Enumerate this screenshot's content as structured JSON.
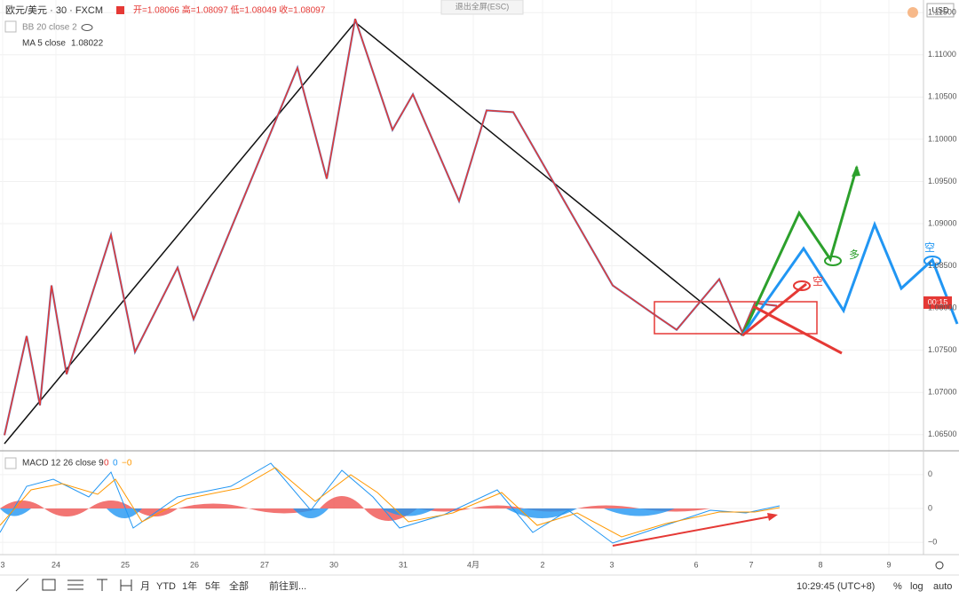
{
  "header": {
    "symbol": "欧元/美元 · 30 · FXCM",
    "ohlc": "开=1.08066 高=1.08097 低=1.08049 收=1.08097",
    "exit_fullscreen": "退出全屏(ESC)",
    "currency": "USD"
  },
  "indicators": {
    "bb": "BB 20 close 2",
    "ma": "MA 5 close",
    "ma_value": "1.08022",
    "macd": "MACD 12 26 close 9",
    "macd_values": [
      "0",
      "0",
      "−0"
    ]
  },
  "price_axis": {
    "ylim": [
      1.0635,
      1.1165
    ],
    "yticks": [
      {
        "value": 1.115,
        "label": "1.11500"
      },
      {
        "value": 1.11,
        "label": "1.11000"
      },
      {
        "value": 1.105,
        "label": "1.10500"
      },
      {
        "value": 1.1,
        "label": "1.10000"
      },
      {
        "value": 1.095,
        "label": "1.09500"
      },
      {
        "value": 1.09,
        "label": "1.09000"
      },
      {
        "value": 1.085,
        "label": "1.08500"
      },
      {
        "value": 1.08,
        "label": "1.08000"
      },
      {
        "value": 1.075,
        "label": "1.07500"
      },
      {
        "value": 1.07,
        "label": "1.07000"
      },
      {
        "value": 1.065,
        "label": "1.06500"
      }
    ],
    "countdown": "00:15"
  },
  "price_pivots": [
    1.06493,
    1.07668,
    1.06847,
    1.08268,
    1.07216,
    1.08868,
    1.07479,
    1.08479,
    1.07868,
    1.10847,
    1.09532,
    1.11426,
    1.10111,
    1.10532,
    1.09268,
    1.10342,
    1.10321,
    1.08268,
    1.079,
    1.07742,
    1.08342,
    1.07711,
    1.08058,
    1.08026
  ],
  "macd_axis": {
    "ylim": [
      -0.0033,
      0.0033
    ],
    "yticks": [
      {
        "value": 0.002,
        "label": "0"
      },
      0,
      {
        "value": -0.002,
        "label": "−0"
      }
    ]
  },
  "time_labels": [
    "3",
    "24",
    "25",
    "26",
    "27",
    "30",
    "31",
    "4月",
    "2",
    "3",
    "6",
    "7",
    "8",
    "9"
  ],
  "annotations": {
    "long": "多",
    "short1": "空",
    "short2": "空"
  },
  "toolbar": {
    "ranges": [
      "月",
      "YTD",
      "1年",
      "5年",
      "全部"
    ],
    "goto": "前往到...",
    "clock": "10:29:45 (UTC+8)",
    "percent": "%",
    "log": "log",
    "auto": "auto"
  }
}
